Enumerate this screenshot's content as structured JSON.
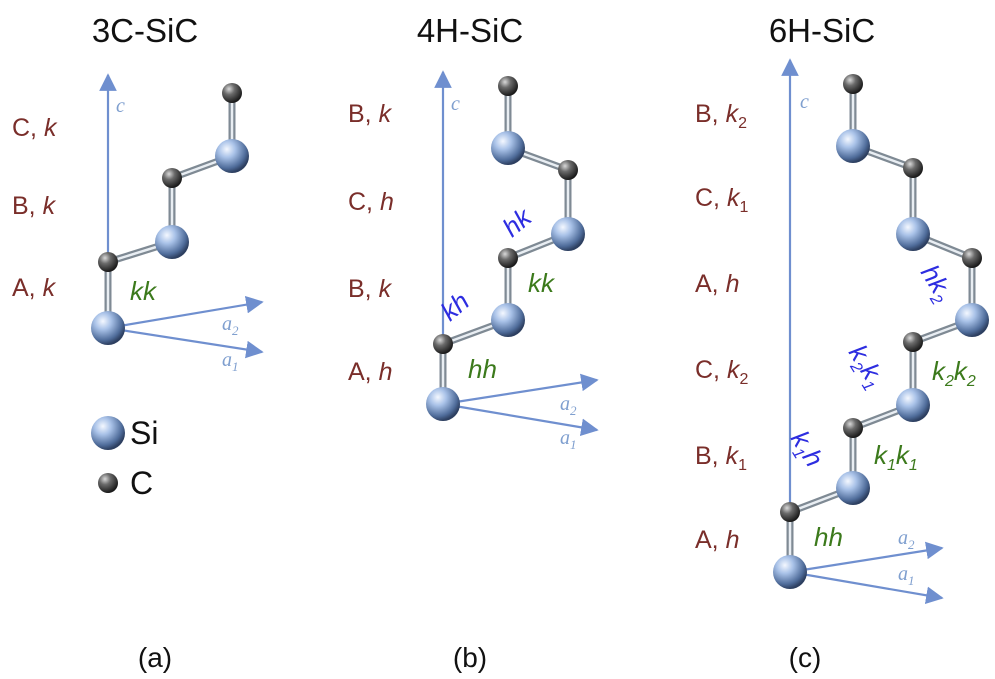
{
  "titles": [
    "3C-SiC",
    "4H-SiC",
    "6H-SiC"
  ],
  "panel_labels": [
    "(a)",
    "(b)",
    "(c)"
  ],
  "axis_labels": {
    "c": "c",
    "a": "a",
    "sub1": "1",
    "sub2": "2"
  },
  "panel_a": {
    "layers": [
      {
        "letter": "C, ",
        "site": "k",
        "sub": ""
      },
      {
        "letter": "B, ",
        "site": "k",
        "sub": ""
      },
      {
        "letter": "A, ",
        "site": "k",
        "sub": ""
      }
    ],
    "green_labels": [
      "kk"
    ]
  },
  "panel_b": {
    "layers": [
      {
        "letter": "B, ",
        "site": "k",
        "sub": ""
      },
      {
        "letter": "C, ",
        "site": "h",
        "sub": ""
      },
      {
        "letter": "B, ",
        "site": "k",
        "sub": ""
      },
      {
        "letter": "A, ",
        "site": "h",
        "sub": ""
      }
    ],
    "green_labels": [
      "kk",
      "hh"
    ],
    "blue_labels": [
      "hk",
      "kh"
    ]
  },
  "panel_c": {
    "layers": [
      {
        "letter": "B, ",
        "site": "k",
        "sub": "2"
      },
      {
        "letter": "C, ",
        "site": "k",
        "sub": "1"
      },
      {
        "letter": "A, ",
        "site": "h",
        "sub": ""
      },
      {
        "letter": "C, ",
        "site": "k",
        "sub": "2"
      },
      {
        "letter": "B, ",
        "site": "k",
        "sub": "1"
      },
      {
        "letter": "A, ",
        "site": "h",
        "sub": ""
      }
    ],
    "green_k2k2": {
      "a": "k",
      "s1": "2",
      "b": "k",
      "s2": "2"
    },
    "green_k1k1": {
      "a": "k",
      "s1": "1",
      "b": "k",
      "s2": "1"
    },
    "green_hh": "hh",
    "blue_hk2": {
      "a": "hk",
      "s": "2"
    },
    "blue_k2k1": {
      "a": "k",
      "s1": "2",
      "b": "k",
      "s2": "1"
    },
    "blue_k1h": {
      "a": "k",
      "s1": "1",
      "b": "h"
    }
  },
  "legend": [
    {
      "atom": "si-atom",
      "label": "Si"
    },
    {
      "atom": "c-atom",
      "label": "C"
    }
  ]
}
